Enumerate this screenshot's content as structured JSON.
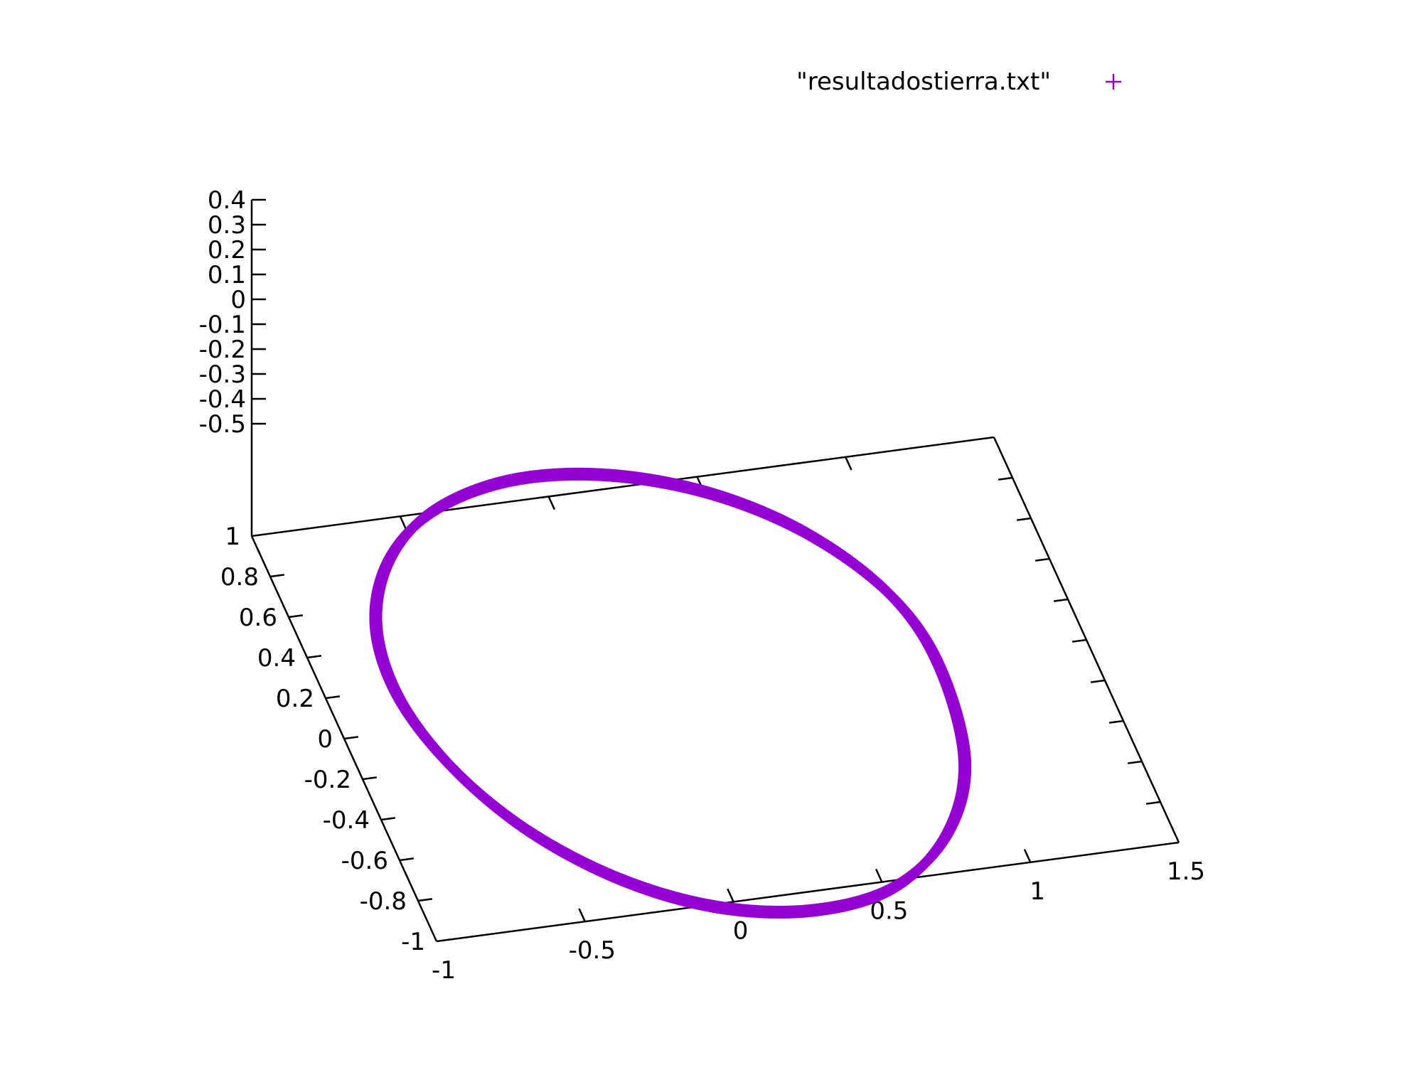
{
  "chart_data": {
    "type": "scatter",
    "dimensions": 3,
    "title": "",
    "legend": {
      "position": "top-right",
      "entries": [
        {
          "label": "\"resultadostierra.txt\"",
          "marker": "+",
          "color": "#9400d3"
        }
      ]
    },
    "axes": {
      "x": {
        "ticks": [
          "-1",
          "-0.5",
          "0",
          "0.5",
          "1",
          "1.5"
        ],
        "tick_values": [
          -1,
          -0.5,
          0,
          0.5,
          1,
          1.5
        ],
        "range": [
          -1,
          1.5
        ]
      },
      "y": {
        "ticks": [
          "-1",
          "-0.8",
          "-0.6",
          "-0.4",
          "-0.2",
          "0",
          "0.2",
          "0.4",
          "0.6",
          "0.8",
          "1"
        ],
        "tick_values": [
          -1,
          -0.8,
          -0.6,
          -0.4,
          -0.2,
          0,
          0.2,
          0.4,
          0.6,
          0.8,
          1
        ],
        "range": [
          -1,
          1
        ]
      },
      "z": {
        "ticks": [
          "-0.5",
          "-0.4",
          "-0.3",
          "-0.2",
          "-0.1",
          "0",
          "0.1",
          "0.2",
          "0.3",
          "0.4"
        ],
        "tick_values": [
          -0.5,
          -0.4,
          -0.3,
          -0.2,
          -0.1,
          0,
          0.1,
          0.2,
          0.3,
          0.4
        ],
        "range": [
          -0.5,
          0.4
        ]
      }
    },
    "series": [
      {
        "name": "\"resultadostierra.txt\"",
        "color": "#9400d3",
        "marker": "+",
        "description": "closed elliptical orbit of the Earth",
        "x": [
          1.0,
          0.93,
          0.74,
          0.48,
          0.17,
          -0.14,
          -0.42,
          -0.62,
          -0.74,
          -0.76,
          -0.68,
          -0.52,
          -0.29,
          -0.02,
          0.27,
          0.55,
          0.79,
          0.95,
          1.0
        ],
        "y": [
          0.0,
          0.32,
          0.61,
          0.83,
          0.96,
          0.99,
          0.91,
          0.74,
          0.49,
          0.19,
          -0.13,
          -0.44,
          -0.71,
          -0.9,
          -0.99,
          -0.96,
          -0.77,
          -0.45,
          0.0
        ],
        "z": [
          -0.02,
          0.03,
          0.08,
          0.11,
          0.13,
          0.13,
          0.11,
          0.07,
          0.02,
          -0.03,
          -0.08,
          -0.12,
          -0.14,
          -0.14,
          -0.12,
          -0.09,
          -0.06,
          -0.04,
          -0.02
        ]
      }
    ]
  }
}
